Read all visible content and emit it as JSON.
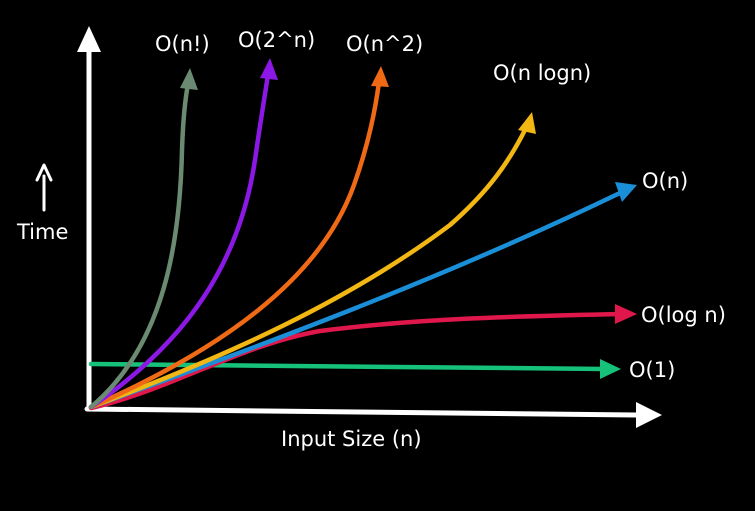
{
  "axes": {
    "x_label": "Input Size (n)",
    "y_label": "Time",
    "color": "#ffffff"
  },
  "curves": [
    {
      "id": "factorial",
      "label": "O(n!)",
      "color": "#6b8a72"
    },
    {
      "id": "exponential",
      "label": "O(2^n)",
      "color": "#8c18e6"
    },
    {
      "id": "quadratic",
      "label": "O(n^2)",
      "color": "#f06a16"
    },
    {
      "id": "nlogn",
      "label": "O(n logn)",
      "color": "#f2b713"
    },
    {
      "id": "linear",
      "label": "O(n)",
      "color": "#1a8fd8"
    },
    {
      "id": "log",
      "label": "O(log n)",
      "color": "#e0174a"
    },
    {
      "id": "constant",
      "label": "O(1)",
      "color": "#16c27a"
    }
  ]
}
